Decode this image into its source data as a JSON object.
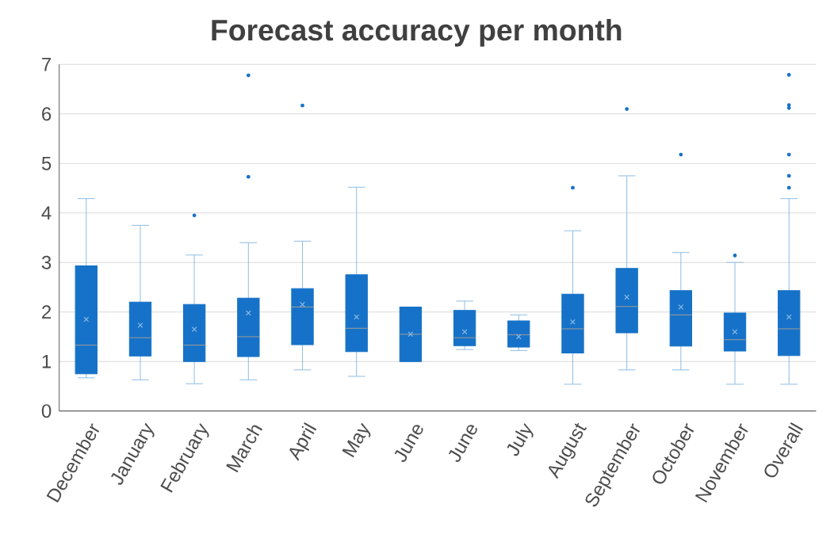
{
  "chart_data": {
    "type": "box",
    "title": "Forecast accuracy per month",
    "categories": [
      "December",
      "January",
      "February",
      "March",
      "April",
      "May",
      "June",
      "June",
      "July",
      "August",
      "September",
      "October",
      "November",
      "Overall"
    ],
    "boxes": [
      {
        "low": 0.67,
        "q1": 0.75,
        "median": 1.33,
        "q3": 2.93,
        "high": 4.29,
        "mean": 1.85
      },
      {
        "low": 0.63,
        "q1": 1.11,
        "median": 1.48,
        "q3": 2.2,
        "high": 3.75,
        "mean": 1.73
      },
      {
        "low": 0.55,
        "q1": 1.0,
        "median": 1.33,
        "q3": 2.15,
        "high": 3.15,
        "mean": 1.65,
        "outliers": [
          3.95
        ]
      },
      {
        "low": 0.63,
        "q1": 1.1,
        "median": 1.5,
        "q3": 2.28,
        "high": 3.4,
        "mean": 1.98,
        "outliers": [
          4.73,
          6.78
        ]
      },
      {
        "low": 0.83,
        "q1": 1.34,
        "median": 2.1,
        "q3": 2.47,
        "high": 3.43,
        "mean": 2.15,
        "outliers": [
          6.17
        ]
      },
      {
        "low": 0.7,
        "q1": 1.2,
        "median": 1.67,
        "q3": 2.75,
        "high": 4.52,
        "mean": 1.9
      },
      {
        "low": 1.0,
        "q1": 1.0,
        "median": 1.55,
        "q3": 2.1,
        "high": 2.1,
        "mean": 1.55
      },
      {
        "low": 1.24,
        "q1": 1.32,
        "median": 1.48,
        "q3": 2.03,
        "high": 2.22,
        "mean": 1.6
      },
      {
        "low": 1.22,
        "q1": 1.29,
        "median": 1.54,
        "q3": 1.82,
        "high": 1.94,
        "mean": 1.5
      },
      {
        "low": 0.54,
        "q1": 1.17,
        "median": 1.66,
        "q3": 2.36,
        "high": 3.64,
        "mean": 1.8,
        "outliers": [
          4.51
        ]
      },
      {
        "low": 0.83,
        "q1": 1.58,
        "median": 2.11,
        "q3": 2.88,
        "high": 4.75,
        "mean": 2.3,
        "outliers": [
          6.1
        ]
      },
      {
        "low": 0.83,
        "q1": 1.31,
        "median": 1.94,
        "q3": 2.43,
        "high": 3.2,
        "mean": 2.1,
        "outliers": [
          5.18
        ]
      },
      {
        "low": 0.54,
        "q1": 1.21,
        "median": 1.44,
        "q3": 1.98,
        "high": 3.0,
        "mean": 1.6,
        "outliers": [
          3.14
        ]
      },
      {
        "low": 0.54,
        "q1": 1.12,
        "median": 1.66,
        "q3": 2.43,
        "high": 4.29,
        "mean": 1.9,
        "outliers": [
          4.51,
          4.75,
          5.18,
          6.12,
          6.18,
          6.79
        ]
      }
    ],
    "color": "#1672c8",
    "ylim": [
      0,
      7
    ],
    "yticks": [
      0,
      1,
      2,
      3,
      4,
      5,
      6,
      7
    ],
    "grid": "y"
  }
}
